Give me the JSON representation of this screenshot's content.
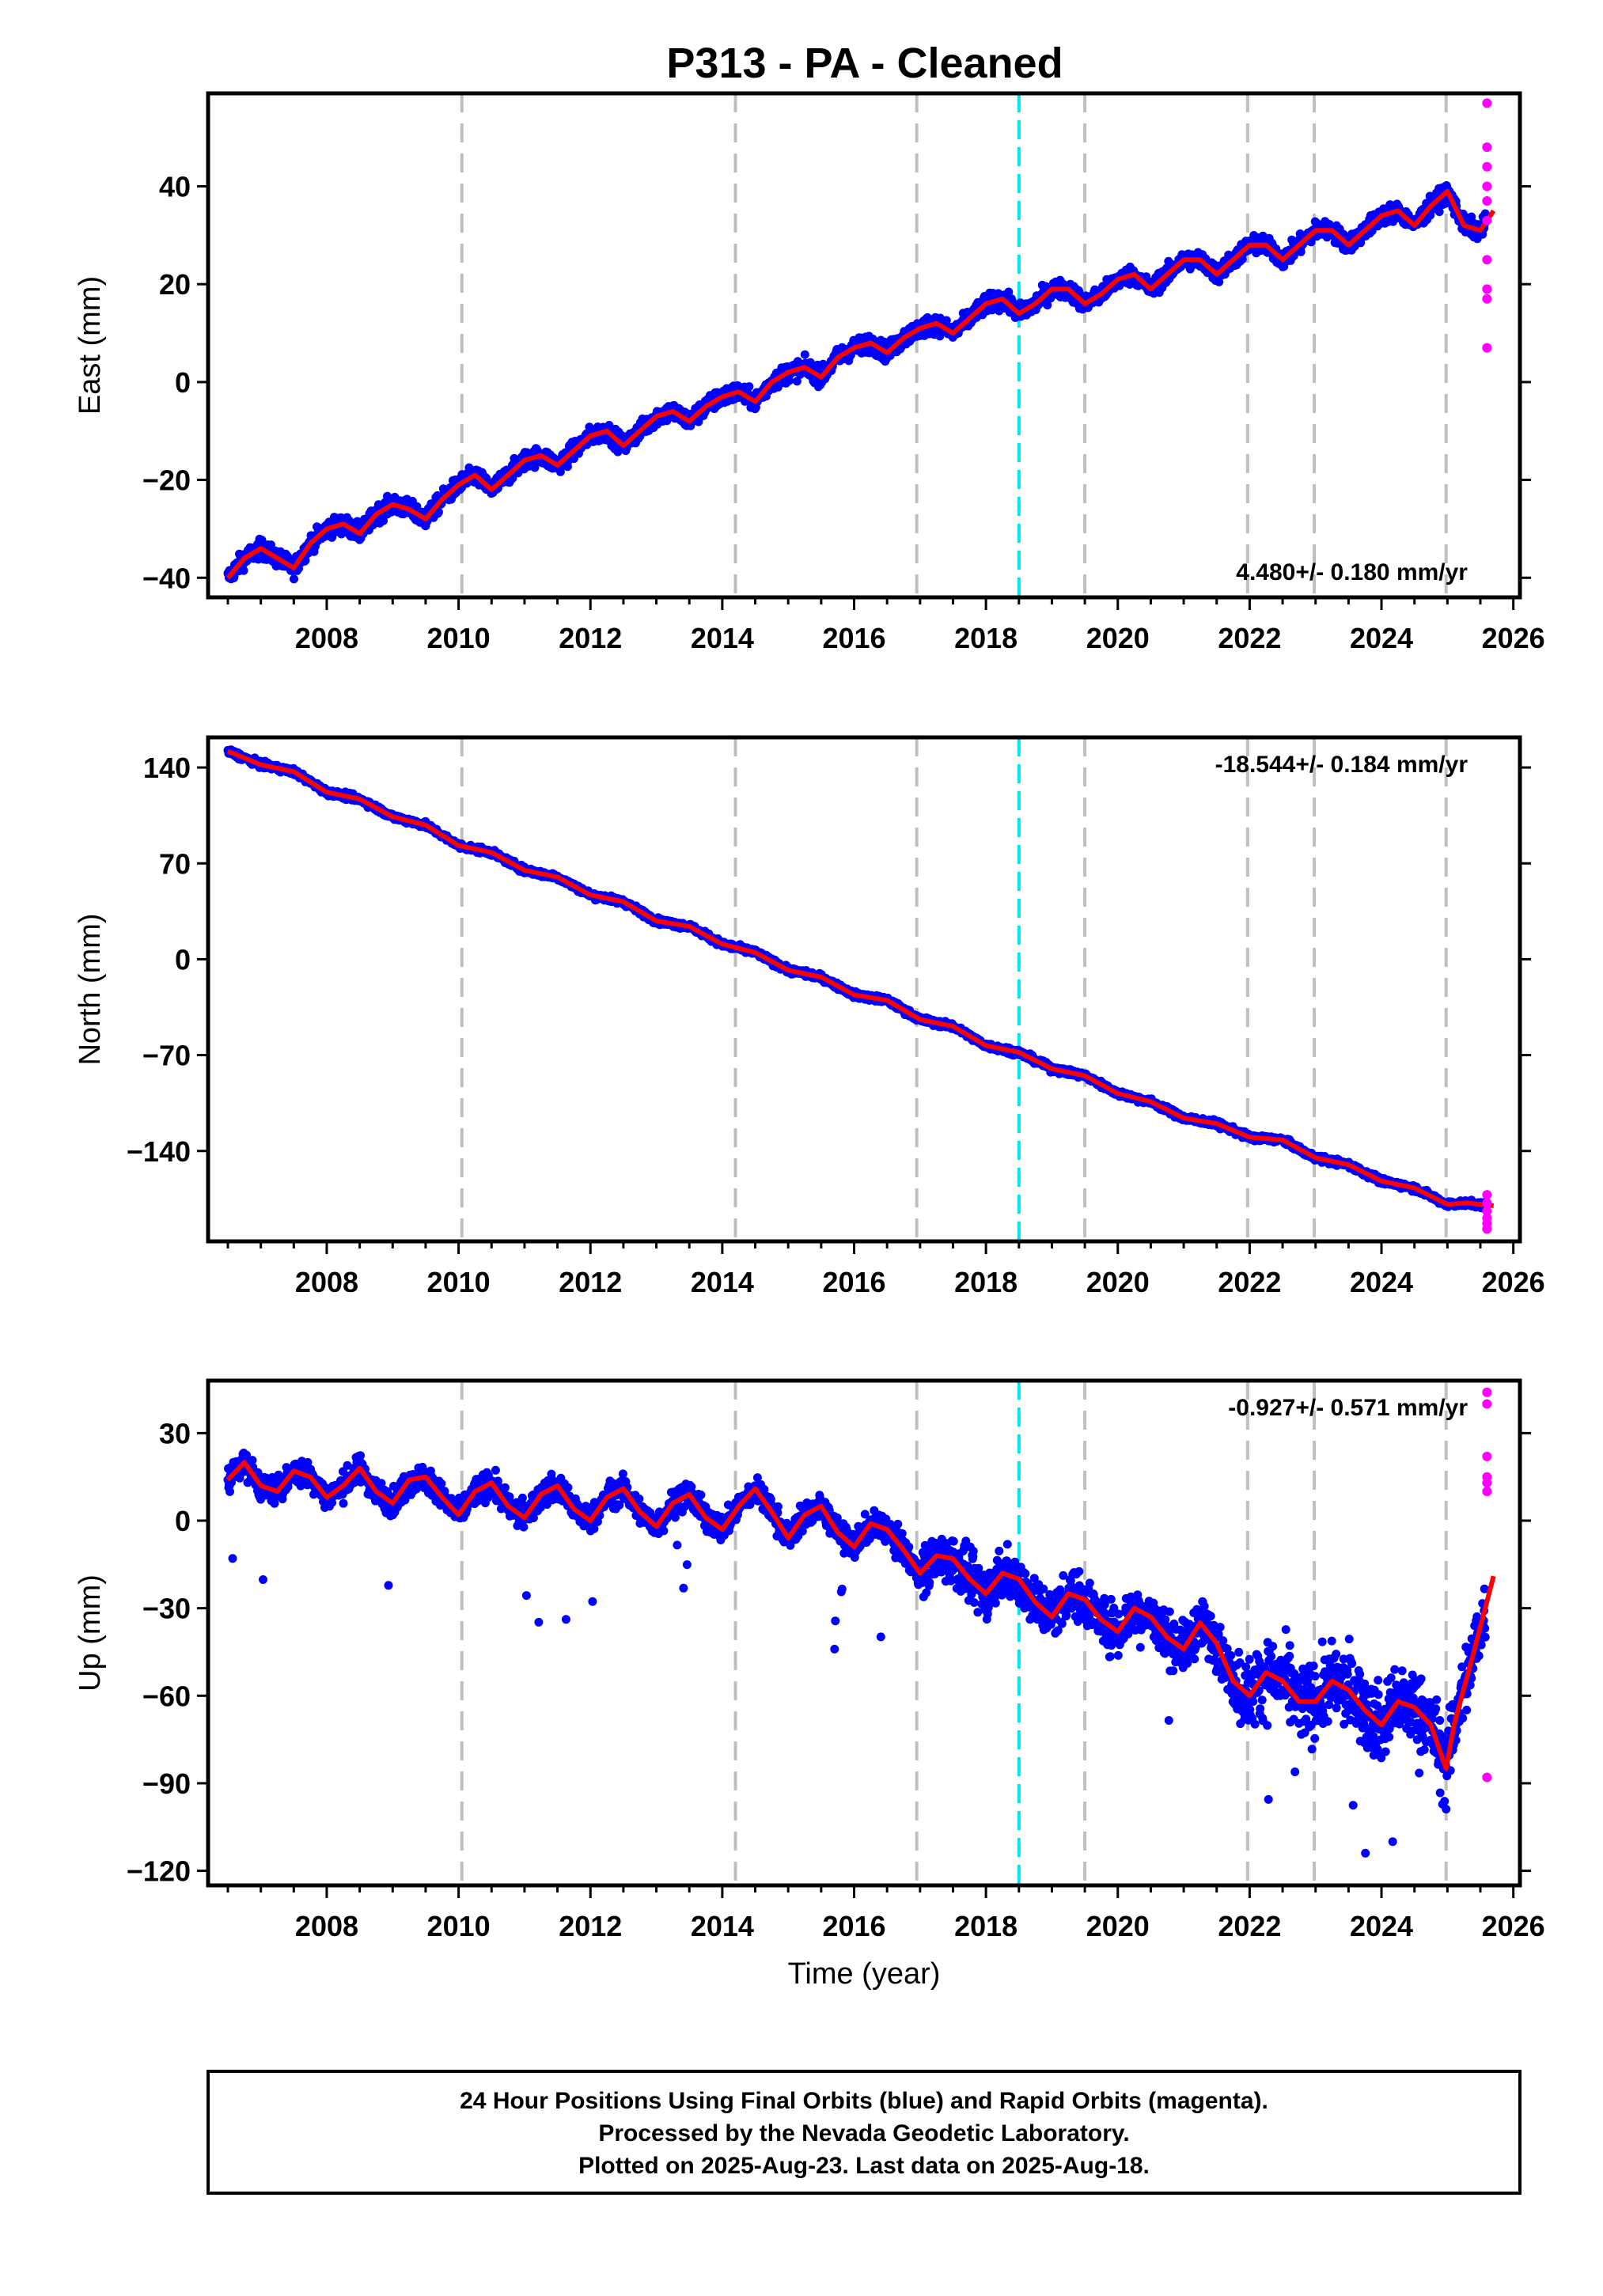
{
  "page": {
    "title": "P313  - PA - Cleaned",
    "footer_lines": [
      "24 Hour Positions Using Final Orbits (blue) and Rapid Orbits (magenta).",
      "Processed by the Nevada Geodetic Laboratory.",
      "Plotted on 2025-Aug-23. Last data on 2025-Aug-18."
    ]
  },
  "colors": {
    "final_points": "#0000ff",
    "rapid_points": "#ff00ff",
    "model_line": "#ff0000",
    "event_line": "#bfbfbf",
    "antenna_line": "#00e5ee"
  },
  "chart_data": [
    {
      "type": "scatter",
      "component": "east",
      "ylabel": "East (mm)",
      "xlabel": "",
      "xlim": [
        2006.2,
        2026.1
      ],
      "ylim": [
        -44,
        59
      ],
      "yticks": [
        -40,
        -20,
        0,
        20,
        40
      ],
      "ytick_labels": [
        "−40",
        "−20",
        "0",
        "20",
        "40"
      ],
      "xticks": [
        2008,
        2010,
        2012,
        2014,
        2016,
        2018,
        2020,
        2022,
        2024,
        2026
      ],
      "rate_text": "4.480+/- 0.180 mm/yr",
      "rate_position": "bottom-right",
      "grid": false,
      "event_lines": [
        2010.05,
        2014.2,
        2016.95,
        2019.5,
        2021.97,
        2022.98,
        2024.98
      ],
      "antenna_change": [
        2018.5
      ],
      "series": [
        {
          "kind": "model",
          "x": [
            2006.5,
            2006.75,
            2007.0,
            2007.25,
            2007.5,
            2007.75,
            2008.0,
            2008.25,
            2008.5,
            2008.75,
            2009.0,
            2009.25,
            2009.5,
            2009.75,
            2010.0,
            2010.25,
            2010.5,
            2010.75,
            2011.0,
            2011.25,
            2011.5,
            2011.75,
            2012.0,
            2012.25,
            2012.5,
            2012.75,
            2013.0,
            2013.25,
            2013.5,
            2013.75,
            2014.0,
            2014.25,
            2014.5,
            2014.75,
            2015.0,
            2015.25,
            2015.5,
            2015.75,
            2016.0,
            2016.25,
            2016.5,
            2016.75,
            2017.0,
            2017.25,
            2017.5,
            2017.75,
            2018.0,
            2018.25,
            2018.5,
            2018.75,
            2019.0,
            2019.25,
            2019.5,
            2019.75,
            2020.0,
            2020.25,
            2020.5,
            2020.75,
            2021.0,
            2021.25,
            2021.5,
            2021.75,
            2022.0,
            2022.25,
            2022.5,
            2022.75,
            2023.0,
            2023.25,
            2023.5,
            2023.75,
            2024.0,
            2024.25,
            2024.5,
            2024.75,
            2025.0,
            2025.25,
            2025.5,
            2025.7
          ],
          "y": [
            -40,
            -36,
            -34,
            -36,
            -38,
            -33,
            -30,
            -29,
            -31,
            -27,
            -25,
            -26,
            -28,
            -24,
            -21,
            -19,
            -22,
            -19,
            -16,
            -15,
            -17,
            -14,
            -11,
            -10,
            -13,
            -10,
            -7,
            -6,
            -8,
            -5,
            -3,
            -2,
            -4,
            0,
            2,
            3,
            1,
            5,
            7,
            8,
            6,
            9,
            11,
            12,
            10,
            13,
            16,
            17,
            14,
            16,
            19,
            19,
            16,
            18,
            21,
            22,
            19,
            22,
            25,
            25,
            22,
            25,
            28,
            28,
            25,
            28,
            31,
            31,
            28,
            31,
            34,
            35,
            32,
            36,
            39,
            32,
            31,
            35
          ]
        }
      ],
      "rapid_x": 2025.6,
      "rapid_y": [
        7,
        17,
        19,
        25,
        33,
        37,
        40,
        44,
        48,
        57
      ]
    },
    {
      "type": "scatter",
      "component": "north",
      "ylabel": "North (mm)",
      "xlabel": "",
      "xlim": [
        2006.2,
        2026.1
      ],
      "ylim": [
        -206,
        162
      ],
      "yticks": [
        -140,
        -70,
        0,
        70,
        140
      ],
      "ytick_labels": [
        "−140",
        "−70",
        "0",
        "70",
        "140"
      ],
      "xticks": [
        2008,
        2010,
        2012,
        2014,
        2016,
        2018,
        2020,
        2022,
        2024,
        2026
      ],
      "rate_text": "-18.544+/- 0.184 mm/yr",
      "rate_position": "top-right",
      "grid": false,
      "event_lines": [
        2010.05,
        2014.2,
        2016.95,
        2019.5,
        2021.97,
        2022.98,
        2024.98
      ],
      "antenna_change": [
        2018.5
      ],
      "series": [
        {
          "kind": "model",
          "x": [
            2006.5,
            2007.0,
            2007.5,
            2008.0,
            2008.5,
            2009.0,
            2009.5,
            2010.0,
            2010.5,
            2011.0,
            2011.5,
            2012.0,
            2012.5,
            2013.0,
            2013.5,
            2014.0,
            2014.5,
            2015.0,
            2015.5,
            2016.0,
            2016.5,
            2017.0,
            2017.5,
            2018.0,
            2018.5,
            2019.0,
            2019.5,
            2020.0,
            2020.5,
            2021.0,
            2021.5,
            2022.0,
            2022.5,
            2023.0,
            2023.5,
            2024.0,
            2024.5,
            2025.0,
            2025.3,
            2025.7
          ],
          "y": [
            152,
            142,
            137,
            122,
            117,
            104,
            98,
            83,
            78,
            65,
            60,
            47,
            42,
            28,
            24,
            11,
            5,
            -8,
            -13,
            -26,
            -30,
            -44,
            -49,
            -63,
            -68,
            -80,
            -85,
            -98,
            -104,
            -116,
            -120,
            -130,
            -132,
            -145,
            -150,
            -162,
            -167,
            -179,
            -178,
            -180
          ]
        }
      ],
      "rapid_x": 2025.6,
      "rapid_y": [
        -172,
        -178,
        -184,
        -189,
        -193,
        -197
      ]
    },
    {
      "type": "scatter",
      "component": "up",
      "ylabel": "Up (mm)",
      "xlabel": "Time (year)",
      "xlim": [
        2006.2,
        2026.1
      ],
      "ylim": [
        -125,
        48
      ],
      "yticks": [
        -120,
        -90,
        -60,
        -30,
        0,
        30
      ],
      "ytick_labels": [
        "−120",
        "−90",
        "−60",
        "−30",
        "0",
        "30"
      ],
      "xticks": [
        2008,
        2010,
        2012,
        2014,
        2016,
        2018,
        2020,
        2022,
        2024,
        2026
      ],
      "rate_text": "-0.927+/- 0.571 mm/yr",
      "rate_position": "top-right",
      "grid": false,
      "event_lines": [
        2010.05,
        2014.2,
        2016.95,
        2019.5,
        2021.97,
        2022.98,
        2024.98
      ],
      "antenna_change": [
        2018.5
      ],
      "series": [
        {
          "kind": "model",
          "x": [
            2006.5,
            2006.75,
            2007.0,
            2007.25,
            2007.5,
            2007.75,
            2008.0,
            2008.25,
            2008.5,
            2008.75,
            2009.0,
            2009.25,
            2009.5,
            2009.75,
            2010.0,
            2010.25,
            2010.5,
            2010.75,
            2011.0,
            2011.25,
            2011.5,
            2011.75,
            2012.0,
            2012.25,
            2012.5,
            2012.75,
            2013.0,
            2013.25,
            2013.5,
            2013.75,
            2014.0,
            2014.25,
            2014.5,
            2014.75,
            2015.0,
            2015.25,
            2015.5,
            2015.75,
            2016.0,
            2016.25,
            2016.5,
            2016.75,
            2017.0,
            2017.25,
            2017.5,
            2017.75,
            2018.0,
            2018.25,
            2018.5,
            2018.75,
            2019.0,
            2019.25,
            2019.5,
            2019.75,
            2020.0,
            2020.25,
            2020.5,
            2020.75,
            2021.0,
            2021.25,
            2021.5,
            2021.75,
            2022.0,
            2022.25,
            2022.5,
            2022.75,
            2023.0,
            2023.25,
            2023.5,
            2023.75,
            2024.0,
            2024.25,
            2024.5,
            2024.75,
            2024.98,
            2025.1,
            2025.4,
            2025.7
          ],
          "y": [
            14,
            20,
            12,
            10,
            17,
            15,
            8,
            12,
            18,
            10,
            6,
            14,
            15,
            8,
            2,
            10,
            13,
            5,
            1,
            9,
            12,
            4,
            0,
            8,
            11,
            3,
            -2,
            6,
            9,
            1,
            -3,
            5,
            11,
            3,
            -6,
            2,
            5,
            -4,
            -9,
            -1,
            -3,
            -10,
            -18,
            -12,
            -13,
            -20,
            -25,
            -18,
            -20,
            -28,
            -33,
            -25,
            -27,
            -34,
            -38,
            -30,
            -33,
            -40,
            -44,
            -35,
            -42,
            -55,
            -60,
            -52,
            -55,
            -62,
            -62,
            -55,
            -58,
            -65,
            -70,
            -62,
            -64,
            -70,
            -85,
            -70,
            -45,
            -19
          ]
        }
      ],
      "rapid_x": 2025.6,
      "rapid_y": [
        -88,
        10,
        13,
        15,
        22,
        40,
        44
      ]
    }
  ]
}
